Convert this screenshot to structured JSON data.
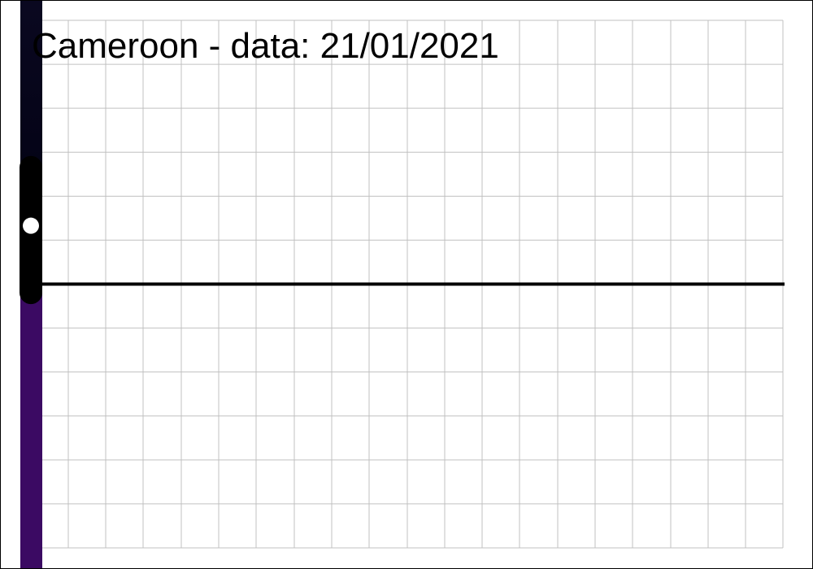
{
  "chart_data": {
    "type": "line",
    "title": "Cameroon  - data: 21/01/2021",
    "xlabel": "",
    "ylabel": "",
    "grid": true,
    "axes_visible": false,
    "series": [
      {
        "values": [
          2.7,
          -0.2
        ]
      }
    ],
    "marker_value": 1.35,
    "reference_line_value": 0,
    "ylim": [
      -6.1,
      6.1
    ],
    "colors": {
      "band_top": "#0a0820",
      "band_mid": "#000010",
      "band_bottom": "#3b0a63",
      "line": "#000000",
      "marker": "#ffffff",
      "grid": "#c0c0c0"
    }
  }
}
